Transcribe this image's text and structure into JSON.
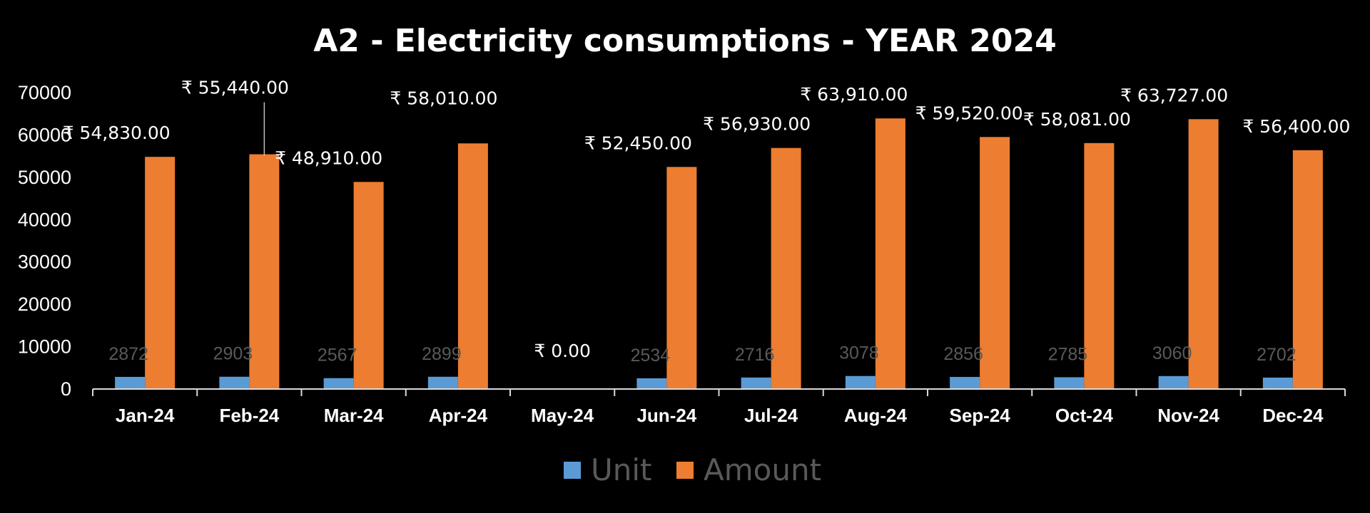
{
  "chart_data": {
    "type": "bar",
    "title": "A2 - Electricity consumptions - YEAR 2024",
    "xlabel": "",
    "ylabel": "",
    "categories": [
      "Jan-24",
      "Feb-24",
      "Mar-24",
      "Apr-24",
      "May-24",
      "Jun-24",
      "Jul-24",
      "Aug-24",
      "Sep-24",
      "Oct-24",
      "Nov-24",
      "Dec-24"
    ],
    "ylim": [
      0,
      70000
    ],
    "yticks": [
      "0",
      "10000",
      "20000",
      "30000",
      "40000",
      "50000",
      "60000",
      "70000"
    ],
    "grid": false,
    "legend_position": "bottom",
    "series": [
      {
        "name": "Unit",
        "color": "#5B9BD5",
        "values": [
          2872,
          2903,
          2567,
          2899,
          0,
          2534,
          2716,
          3078,
          2856,
          2785,
          3060,
          2702
        ],
        "data_labels": [
          "2872",
          "2903",
          "2567",
          "2899",
          "",
          "2534",
          "2716",
          "3078",
          "2856",
          "2785",
          "3060",
          "2702"
        ]
      },
      {
        "name": "Amount",
        "color": "#ED7D31",
        "values": [
          54830,
          55440,
          48910,
          58010,
          0,
          52450,
          56930,
          63910,
          59520,
          58081,
          63727,
          56400
        ],
        "data_labels": [
          "₹ 54,830.00",
          "₹ 55,440.00",
          "₹ 48,910.00",
          "₹ 58,010.00",
          "₹ 0.00",
          "₹ 52,450.00",
          "₹ 56,930.00",
          "₹ 63,910.00",
          "₹ 59,520.00",
          "₹ 58,081.00",
          "₹ 63,727.00",
          "₹ 56,400.00"
        ]
      }
    ]
  },
  "colors": {
    "background": "#000000",
    "axis": "#d9d9d9",
    "text": "#ffffff",
    "legend_text": "#595959",
    "unit_label": "#595959"
  }
}
